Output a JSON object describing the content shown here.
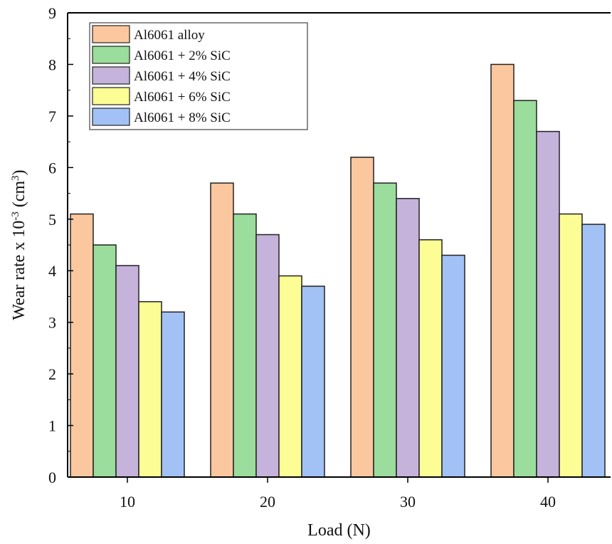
{
  "chart_data": {
    "type": "bar",
    "title": "",
    "xlabel": "Load (N)",
    "ylabel": "Wear rate x 10-3 (cm3)",
    "ylabel_parts": {
      "prefix": "Wear rate x 10",
      "exp1": "-3",
      "mid": " (cm",
      "exp2": "3",
      "suffix": ")"
    },
    "categories": [
      "10",
      "20",
      "30",
      "40"
    ],
    "ylim": [
      0,
      9
    ],
    "yticks": [
      "0",
      "1",
      "2",
      "3",
      "4",
      "5",
      "6",
      "7",
      "8",
      "9"
    ],
    "grid": false,
    "legend_position": "top-left",
    "series": [
      {
        "name": "Al6061 alloy",
        "color": "#FBC79E",
        "values": [
          5.1,
          5.7,
          6.2,
          8.0
        ]
      },
      {
        "name": "Al6061 + 2% SiC",
        "color": "#9ADD9C",
        "values": [
          4.5,
          5.1,
          5.7,
          7.3
        ]
      },
      {
        "name": "Al6061 + 4% SiC",
        "color": "#C5B3DB",
        "values": [
          4.1,
          4.7,
          5.4,
          6.7
        ]
      },
      {
        "name": "Al6061 + 6% SiC",
        "color": "#FDFD96",
        "values": [
          3.4,
          3.9,
          4.6,
          5.1
        ]
      },
      {
        "name": "Al6061 + 8% SiC",
        "color": "#A2C2F5",
        "values": [
          3.2,
          3.7,
          4.3,
          4.9
        ]
      }
    ]
  }
}
